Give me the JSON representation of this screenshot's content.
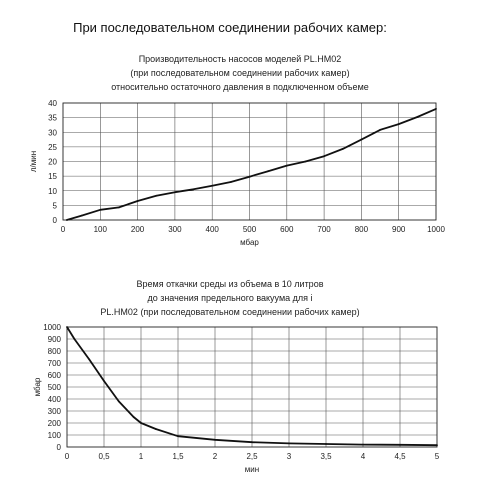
{
  "page": {
    "heading": "При последовательном соединении рабочих камер:"
  },
  "chart_data": [
    {
      "type": "line",
      "title_lines": [
        "Производительность насосов моделей  PL.HM02",
        "(при последовательном соединении рабочих камер)",
        "относительно остаточного давления в подключенном объеме"
      ],
      "xlabel": "мбар",
      "ylabel": "л/мин",
      "xlim": [
        0,
        1000
      ],
      "ylim": [
        0,
        40
      ],
      "x_ticks": [
        "0",
        "100",
        "200",
        "300",
        "400",
        "500",
        "600",
        "700",
        "800",
        "900",
        "1000"
      ],
      "y_ticks": [
        "0",
        "5",
        "10",
        "15",
        "20",
        "25",
        "30",
        "35",
        "40"
      ],
      "grid": true,
      "series": [
        {
          "x": [
            10,
            50,
            100,
            150,
            200,
            250,
            300,
            350,
            400,
            450,
            500,
            550,
            600,
            650,
            700,
            750,
            800,
            850,
            900,
            950,
            1000
          ],
          "y": [
            0,
            1.5,
            3.5,
            4.3,
            6.5,
            8.3,
            9.5,
            10.5,
            11.7,
            13.0,
            14.8,
            16.7,
            18.6,
            20.0,
            21.8,
            24.3,
            27.5,
            30.8,
            32.8,
            35.2,
            38.0
          ]
        }
      ]
    },
    {
      "type": "line",
      "title_lines": [
        "Время откачки среды из объема в 10 литров",
        "до значения предельного вакуума для і",
        "PL.HM02 (при последовательном соединении рабочих камер)"
      ],
      "xlabel": "мин",
      "ylabel": "мбар",
      "xlim": [
        0,
        5
      ],
      "ylim": [
        0,
        1000
      ],
      "x_ticks": [
        "0",
        "0,5",
        "1",
        "1,5",
        "2",
        "2,5",
        "3",
        "3,5",
        "4",
        "4,5",
        "5"
      ],
      "y_ticks": [
        "0",
        "100",
        "200",
        "300",
        "400",
        "500",
        "600",
        "700",
        "800",
        "900",
        "1000"
      ],
      "grid": true,
      "series": [
        {
          "x": [
            0,
            0.1,
            0.3,
            0.5,
            0.7,
            0.9,
            1.0,
            1.2,
            1.5,
            2.0,
            2.5,
            3.0,
            3.5,
            4.0,
            4.5,
            5.0
          ],
          "y": [
            1000,
            900,
            730,
            550,
            380,
            250,
            200,
            150,
            90,
            60,
            40,
            30,
            25,
            20,
            18,
            15
          ]
        }
      ]
    }
  ]
}
